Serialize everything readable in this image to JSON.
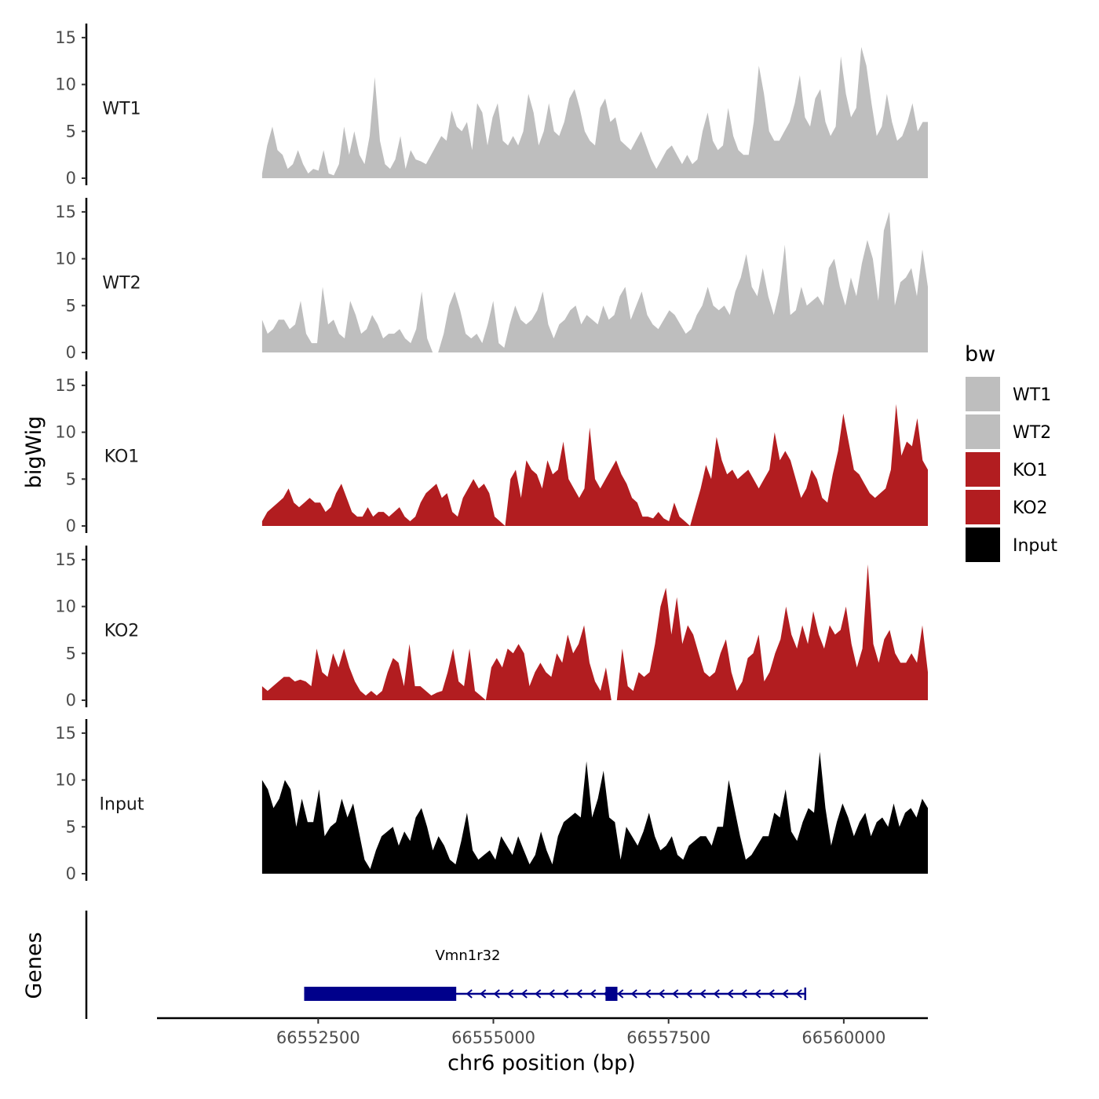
{
  "chart_data": {
    "type": "area",
    "xlabel": "chr6 position (bp)",
    "ylabel": "bigWig",
    "genes_label": "Genes",
    "xlim": [
      66550200,
      66561200
    ],
    "x_ticks": [
      66552500,
      66555000,
      66557500,
      66560000
    ],
    "x_tick_labels": [
      "66552500",
      "66555000",
      "66557500",
      "66560000"
    ],
    "ylim": [
      0,
      16.5
    ],
    "y_ticks": [
      0,
      5,
      10,
      15
    ],
    "y_tick_labels": [
      "0",
      "5",
      "10",
      "15"
    ],
    "legend_title": "bw",
    "legend": [
      {
        "name": "WT1",
        "color": "#bebebe"
      },
      {
        "name": "WT2",
        "color": "#bebebe"
      },
      {
        "name": "KO1",
        "color": "#b21d20"
      },
      {
        "name": "KO2",
        "color": "#b21d20"
      },
      {
        "name": "Input",
        "color": "#000000"
      }
    ],
    "track_start": 66551700,
    "track_end": 66561200,
    "series": [
      {
        "name": "WT1",
        "color": "#bebebe",
        "values": [
          0.5,
          3.5,
          5.5,
          3,
          2.5,
          1,
          1.5,
          3,
          1.5,
          0.5,
          1,
          0.8,
          3,
          0.5,
          0.3,
          1.5,
          5.5,
          2.5,
          5,
          2.5,
          1.5,
          4.5,
          10.8,
          4,
          1.5,
          1,
          2,
          4.5,
          1,
          3,
          2,
          1.8,
          1.5,
          2.5,
          3.5,
          4.5,
          4,
          7.2,
          5.5,
          5,
          6,
          3,
          8,
          7,
          3.5,
          6.5,
          8,
          4,
          3.5,
          4.5,
          3.5,
          5,
          9,
          7,
          3.5,
          5,
          8,
          5,
          4.5,
          6,
          8.5,
          9.5,
          7.5,
          5,
          4,
          3.5,
          7.5,
          8.5,
          6,
          6.5,
          4,
          3.5,
          3,
          4,
          5,
          3.5,
          2,
          1,
          2,
          3,
          3.5,
          2.5,
          1.5,
          2.5,
          1.5,
          2,
          5,
          7,
          4,
          3,
          3.5,
          7.5,
          4.5,
          3,
          2.5,
          2.5,
          6,
          12,
          9,
          5,
          4,
          4,
          5,
          6,
          8,
          11,
          6.5,
          5.5,
          8.5,
          9.5,
          6,
          4.5,
          5.5,
          13,
          9,
          6.5,
          7.5,
          14,
          12,
          8,
          4.5,
          5.5,
          9,
          6,
          4,
          4.5,
          6,
          8,
          5,
          6,
          6
        ]
      },
      {
        "name": "WT2",
        "color": "#bebebe",
        "values": [
          3.5,
          2,
          2.5,
          3.5,
          3.5,
          2.5,
          3,
          5.5,
          2,
          1,
          1,
          7,
          3,
          3.5,
          2,
          1.5,
          5.5,
          4,
          2,
          2.5,
          4,
          3,
          1.5,
          2,
          2,
          2.5,
          1.5,
          1,
          2.5,
          6.5,
          1.5,
          0,
          0,
          2,
          5,
          6.5,
          4.5,
          2,
          1.5,
          2,
          1,
          3,
          5.5,
          1,
          0.5,
          3,
          5,
          3.5,
          3,
          3.5,
          4.5,
          6.5,
          3,
          1.5,
          3,
          3.5,
          4.5,
          5,
          3,
          4,
          3.5,
          3,
          5,
          3.5,
          4,
          6,
          7,
          3.5,
          5,
          6.5,
          4,
          3,
          2.5,
          3.5,
          4.5,
          4,
          3,
          2,
          2.5,
          4,
          5,
          7,
          5,
          4.5,
          5,
          4,
          6.5,
          8,
          10.5,
          7,
          6,
          9,
          6,
          4,
          6.5,
          11.5,
          4,
          4.5,
          7,
          5,
          5.5,
          6,
          5,
          9,
          10,
          7,
          5,
          8,
          6,
          9.5,
          12,
          10,
          5.5,
          13,
          15,
          5,
          7.5,
          8,
          9,
          6,
          11,
          7
        ]
      },
      {
        "name": "KO1",
        "color": "#b21d20",
        "values": [
          0.5,
          1.5,
          2,
          2.5,
          3,
          4,
          2.5,
          2,
          2.5,
          3,
          2.5,
          2.5,
          1.5,
          2,
          3.5,
          4.5,
          3,
          1.5,
          1,
          1,
          2,
          1,
          1.5,
          1.5,
          1,
          1.5,
          2,
          1,
          0.5,
          1,
          2.5,
          3.5,
          4,
          4.5,
          3,
          3.5,
          1.5,
          1,
          3,
          4,
          5,
          4,
          4.5,
          3.5,
          1,
          0.5,
          0,
          5,
          6,
          3,
          7,
          6,
          5.5,
          4,
          7,
          5.5,
          6,
          9,
          5,
          4,
          3,
          4,
          10.5,
          5,
          4,
          5,
          6,
          7,
          5.5,
          4.5,
          3,
          2.5,
          1,
          1,
          0.8,
          1.5,
          0.8,
          0.5,
          2.5,
          1,
          0.5,
          0,
          2,
          4,
          6.5,
          5,
          9.5,
          7,
          5.5,
          6,
          5,
          5.5,
          6,
          5,
          4,
          5,
          6,
          10,
          7,
          8,
          7,
          5,
          3,
          4,
          6,
          5,
          3,
          2.5,
          5.5,
          8,
          12,
          9,
          6,
          5.5,
          4.5,
          3.5,
          3,
          3.5,
          4,
          6,
          13,
          7.5,
          9,
          8.5,
          11.5,
          7,
          6
        ]
      },
      {
        "name": "KO2",
        "color": "#b21d20",
        "values": [
          1.5,
          1,
          1.5,
          2,
          2.5,
          2.5,
          2,
          2.2,
          2,
          1.5,
          5.5,
          3,
          2.5,
          5,
          3.5,
          5.5,
          3.5,
          2,
          1,
          0.5,
          1,
          0.5,
          1,
          3,
          4.5,
          4,
          1.5,
          6,
          1.5,
          1.5,
          1,
          0.5,
          0.8,
          1,
          3,
          5.5,
          2,
          1.5,
          5.5,
          1,
          0.5,
          0,
          3.5,
          4.5,
          3.5,
          5.5,
          5,
          6,
          5,
          1.5,
          3,
          4,
          3,
          2.5,
          5,
          4,
          7,
          5,
          6,
          8,
          4,
          2,
          1,
          3.5,
          0,
          0,
          5.5,
          1.5,
          1,
          3,
          2.5,
          3,
          6,
          10,
          12,
          7,
          11,
          6,
          8,
          7,
          5,
          3,
          2.5,
          3,
          5,
          6.5,
          3,
          1,
          2,
          4.5,
          5,
          7,
          2,
          3,
          5,
          6.5,
          10,
          7,
          5.5,
          8,
          6,
          9.5,
          7,
          5.5,
          8,
          7,
          7.5,
          10,
          6,
          3.5,
          5.5,
          14.5,
          6,
          4,
          6.5,
          7.5,
          5,
          4,
          4,
          5,
          4,
          8,
          3
        ]
      },
      {
        "name": "Input",
        "color": "#000000",
        "values": [
          10,
          9,
          7,
          8,
          10,
          9,
          5,
          8,
          5.5,
          5.5,
          9,
          4,
          5,
          5.5,
          8,
          6,
          7.5,
          4.5,
          1.5,
          0.5,
          2.5,
          4,
          4.5,
          5,
          3,
          4.5,
          3.5,
          6,
          7,
          5,
          2.5,
          4,
          3,
          1.5,
          1,
          3.5,
          6.5,
          2.5,
          1.5,
          2,
          2.5,
          1.5,
          4,
          3,
          2,
          4,
          2.5,
          1,
          2,
          4.5,
          2.5,
          1,
          4,
          5.5,
          6,
          6.5,
          6,
          12,
          6,
          8,
          11,
          6,
          5.5,
          1.5,
          5,
          4,
          3,
          4.5,
          6.5,
          4,
          2.5,
          3,
          4,
          2,
          1.5,
          3,
          3.5,
          4,
          4,
          3,
          5,
          5,
          10,
          7,
          4,
          1.5,
          2,
          3,
          4,
          4,
          6.5,
          6,
          9,
          4.5,
          3.5,
          5.5,
          7,
          6.5,
          13,
          7,
          3,
          5.5,
          7.5,
          6,
          4,
          5.5,
          6.5,
          4,
          5.5,
          6,
          5,
          7.5,
          5,
          6.5,
          7,
          6,
          8,
          7
        ]
      }
    ],
    "gene": {
      "name": "Vmn1r32",
      "start": 66552300,
      "end": 66559450,
      "strand": "-",
      "exons": [
        [
          66552300,
          66554470
        ],
        [
          66556600,
          66556770
        ]
      ]
    }
  }
}
